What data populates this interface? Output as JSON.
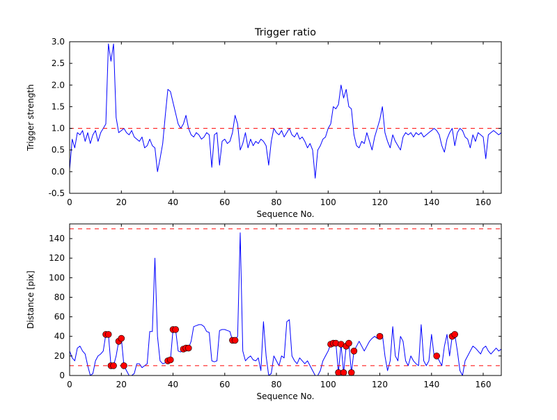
{
  "colors": {
    "background": "#ffffff",
    "line": "#0000ff",
    "threshold": "#ff0000",
    "marker": "#ff0000",
    "axes": "#000000"
  },
  "chart_data": [
    {
      "name": "trigger-ratio",
      "type": "line",
      "title": "Trigger ratio",
      "xlabel": "Sequence No.",
      "ylabel": "Trigger strength",
      "xlim": [
        0,
        167
      ],
      "ylim": [
        -0.5,
        3.0
      ],
      "xticks": [
        0,
        20,
        40,
        60,
        80,
        100,
        120,
        140,
        160
      ],
      "xtick_labels": [
        "0",
        "20",
        "40",
        "60",
        "80",
        "100",
        "120",
        "140",
        "160"
      ],
      "yticks": [
        -0.5,
        0.0,
        0.5,
        1.0,
        1.5,
        2.0,
        2.5,
        3.0
      ],
      "ytick_labels": [
        "-0.5",
        "0.0",
        "0.5",
        "1.0",
        "1.5",
        "2.0",
        "2.5",
        "3.0"
      ],
      "hlines": [
        1.0
      ],
      "grid": false,
      "legend": null,
      "series": [
        {
          "name": "trigger-strength",
          "y": [
            0.05,
            0.75,
            0.55,
            0.9,
            0.85,
            0.95,
            0.7,
            0.9,
            0.65,
            0.85,
            0.95,
            0.7,
            0.9,
            1.0,
            1.1,
            2.95,
            2.55,
            2.95,
            1.25,
            0.9,
            0.95,
            1.0,
            0.9,
            0.85,
            0.95,
            0.8,
            0.75,
            0.7,
            0.8,
            0.55,
            0.6,
            0.75,
            0.6,
            0.55,
            0.0,
            0.3,
            0.65,
            1.3,
            1.9,
            1.85,
            1.6,
            1.35,
            1.1,
            1.0,
            1.1,
            1.3,
            1.0,
            0.85,
            0.8,
            0.9,
            0.85,
            0.75,
            0.8,
            0.9,
            0.85,
            0.1,
            0.85,
            0.9,
            0.15,
            0.7,
            0.75,
            0.65,
            0.7,
            0.9,
            1.3,
            1.1,
            0.5,
            0.65,
            0.9,
            0.55,
            0.75,
            0.6,
            0.7,
            0.65,
            0.75,
            0.7,
            0.6,
            0.15,
            0.7,
            1.0,
            0.9,
            0.85,
            0.95,
            0.8,
            0.9,
            1.0,
            0.85,
            0.8,
            0.9,
            0.75,
            0.8,
            0.7,
            0.55,
            0.65,
            0.5,
            -0.15,
            0.5,
            0.6,
            0.75,
            0.8,
            1.0,
            1.1,
            1.5,
            1.45,
            1.55,
            2.0,
            1.7,
            1.9,
            1.5,
            1.45,
            0.85,
            0.6,
            0.55,
            0.7,
            0.65,
            0.9,
            0.7,
            0.5,
            0.8,
            1.0,
            1.2,
            1.5,
            0.9,
            0.7,
            0.55,
            0.85,
            0.7,
            0.6,
            0.5,
            0.8,
            0.9,
            0.85,
            0.9,
            0.8,
            0.9,
            0.85,
            0.9,
            0.8,
            0.85,
            0.9,
            0.95,
            1.0,
            0.95,
            0.85,
            0.6,
            0.45,
            0.75,
            0.9,
            1.0,
            0.6,
            0.9,
            1.0,
            0.95,
            0.8,
            0.75,
            0.55,
            0.85,
            0.7,
            0.9,
            0.85,
            0.8,
            0.3,
            0.85,
            0.9,
            0.95,
            0.9,
            0.85,
            0.9
          ]
        }
      ]
    },
    {
      "name": "distance",
      "type": "line",
      "title": "",
      "xlabel": "Sequence No.",
      "ylabel": "Distance [pix]",
      "xlim": [
        0,
        167
      ],
      "ylim": [
        0,
        155
      ],
      "xticks": [
        0,
        20,
        40,
        60,
        80,
        100,
        120,
        140,
        160
      ],
      "xtick_labels": [
        "0",
        "20",
        "40",
        "60",
        "80",
        "100",
        "120",
        "140",
        "160"
      ],
      "yticks": [
        0,
        20,
        40,
        60,
        80,
        100,
        120,
        140
      ],
      "ytick_labels": [
        "0",
        "20",
        "40",
        "60",
        "80",
        "100",
        "120",
        "140"
      ],
      "hlines": [
        10,
        150
      ],
      "grid": false,
      "legend": null,
      "series": [
        {
          "name": "distance",
          "y": [
            25,
            18,
            15,
            28,
            30,
            25,
            22,
            10,
            0,
            2,
            15,
            20,
            22,
            25,
            42,
            42,
            10,
            10,
            20,
            35,
            38,
            10,
            5,
            0,
            0,
            2,
            12,
            12,
            8,
            10,
            12,
            45,
            45,
            120,
            40,
            15,
            12,
            13,
            15,
            16,
            47,
            47,
            25,
            24,
            27,
            28,
            28,
            35,
            50,
            51,
            52,
            52,
            50,
            45,
            44,
            15,
            14,
            15,
            46,
            47,
            47,
            46,
            45,
            36,
            36,
            40,
            146,
            25,
            15,
            18,
            20,
            16,
            15,
            18,
            5,
            55,
            20,
            0,
            2,
            20,
            15,
            10,
            20,
            18,
            55,
            57,
            20,
            15,
            12,
            18,
            15,
            12,
            15,
            10,
            5,
            0,
            0,
            5,
            15,
            20,
            25,
            32,
            33,
            33,
            3,
            32,
            3,
            30,
            33,
            3,
            25,
            30,
            35,
            30,
            25,
            30,
            35,
            38,
            40,
            38,
            40,
            42,
            20,
            5,
            15,
            50,
            20,
            15,
            40,
            35,
            15,
            10,
            20,
            15,
            12,
            10,
            52,
            15,
            10,
            15,
            42,
            20,
            20,
            15,
            10,
            30,
            42,
            20,
            40,
            42,
            25,
            5,
            0,
            15,
            20,
            25,
            30,
            28,
            25,
            22,
            28,
            30,
            25,
            22,
            25,
            28,
            25,
            27
          ]
        }
      ],
      "markers": {
        "name": "matched-points",
        "x": [
          14,
          15,
          16,
          17,
          19,
          20,
          21,
          38,
          39,
          40,
          41,
          44,
          45,
          46,
          63,
          64,
          101,
          102,
          103,
          104,
          105,
          106,
          107,
          108,
          109,
          110,
          120,
          142,
          148,
          149
        ],
        "y": [
          42,
          42,
          10,
          10,
          35,
          38,
          10,
          15,
          16,
          47,
          47,
          27,
          28,
          28,
          36,
          36,
          32,
          33,
          33,
          3,
          32,
          3,
          30,
          33,
          3,
          25,
          40,
          20,
          40,
          42
        ]
      }
    }
  ]
}
